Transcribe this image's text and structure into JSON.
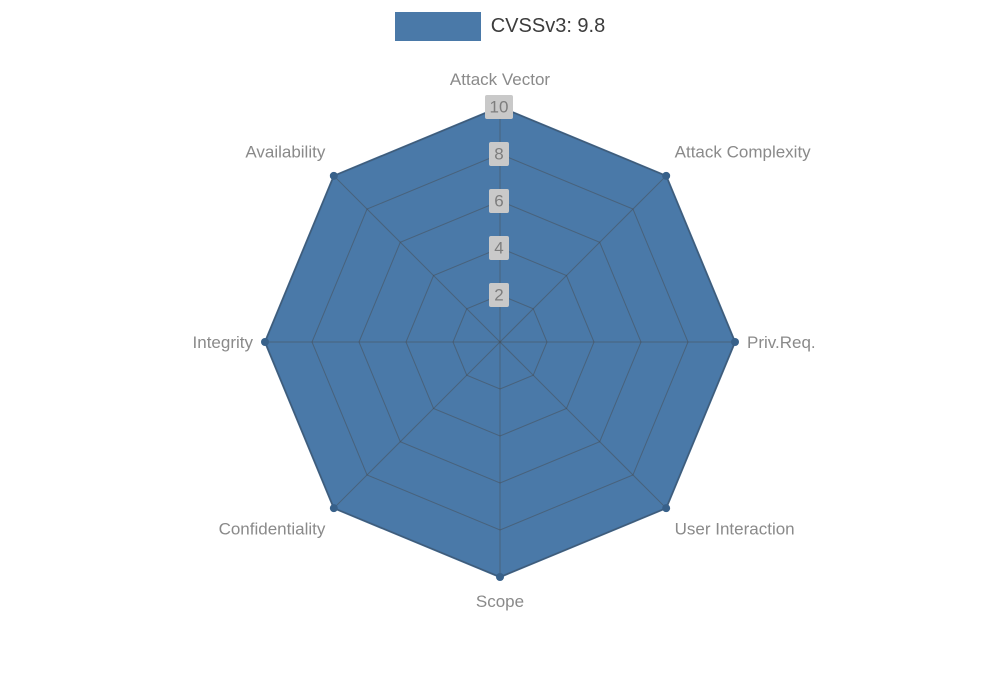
{
  "legend": {
    "label": "CVSSv3: 9.8",
    "swatch_color": "#4a79a8"
  },
  "chart_data": {
    "type": "radar",
    "title": "CVSSv3: 9.8",
    "categories": [
      "Attack Vector",
      "Attack Complexity",
      "Priv.Req.",
      "User Interaction",
      "Scope",
      "Confidentiality",
      "Integrity",
      "Availability"
    ],
    "series": [
      {
        "name": "CVSSv3: 9.8",
        "values": [
          10,
          10,
          10,
          10,
          10,
          10,
          10,
          10
        ]
      }
    ],
    "ticks": [
      2,
      4,
      6,
      8,
      10
    ],
    "rlim": [
      0,
      10
    ],
    "grid": "on",
    "legend_position": "top",
    "colors": {
      "fill": "#4a79a8",
      "stroke": "#3f6a96",
      "marker": "#38618a",
      "grid": "rgba(70,70,70,0.45)",
      "axis_label": "#8a8a8a",
      "tick_text": "#7d7d7d",
      "tick_box": "#c9c9c9",
      "legend_text": "#3c3c3c"
    }
  }
}
